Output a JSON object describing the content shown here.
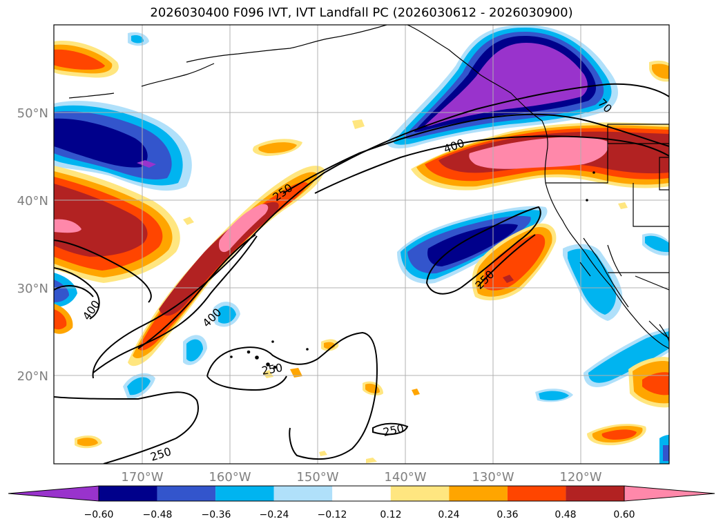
{
  "title": "2026030400 F096 IVT, IVT Landfall PC (2026030612 - 2026030900)",
  "axes": {
    "lon_ticks": [
      "170°W",
      "160°W",
      "150°W",
      "140°W",
      "130°W",
      "120°W"
    ],
    "lat_ticks": [
      "50°N",
      "40°N",
      "30°N",
      "20°N"
    ]
  },
  "contour_labels": [
    "250",
    "400",
    "400",
    "250",
    "250",
    "250",
    "400",
    "70",
    "250"
  ],
  "colorbar": {
    "ticks": [
      "−0.60",
      "−0.48",
      "−0.36",
      "−0.24",
      "−0.12",
      "0.12",
      "0.24",
      "0.36",
      "0.48",
      "0.60"
    ],
    "colors": [
      "#9933cc",
      "#00008b",
      "#3355cc",
      "#00b4f0",
      "#b0e0fa",
      "#ffffff",
      "#ffe680",
      "#ffa500",
      "#ff4500",
      "#b22222",
      "#ff88aa"
    ]
  }
}
